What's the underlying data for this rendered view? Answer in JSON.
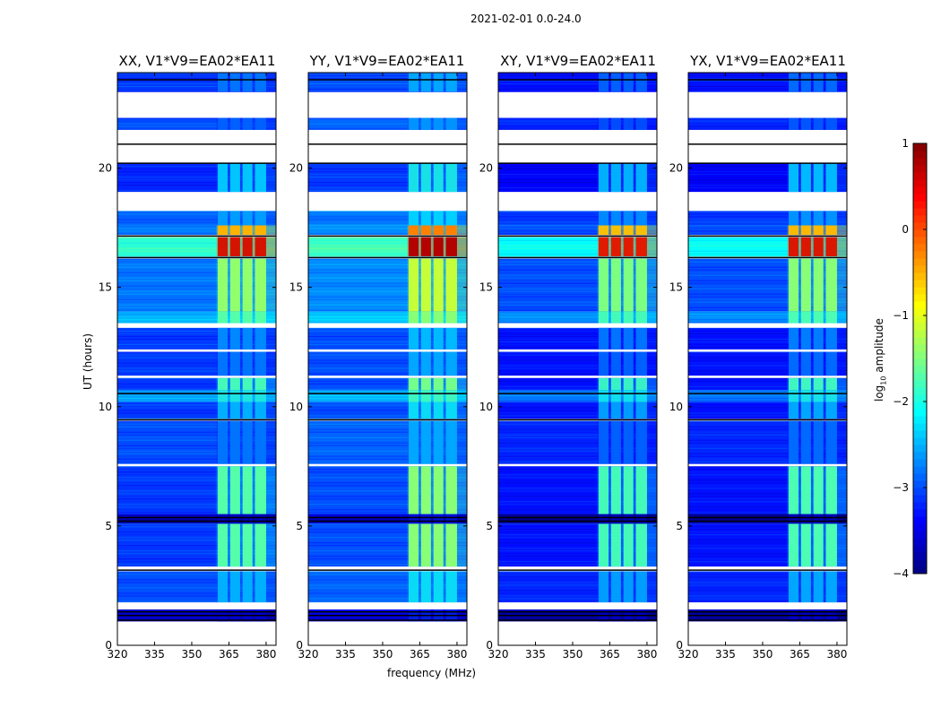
{
  "chart_data": {
    "type": "heatmap",
    "title": "2021-02-01 0.0-24.0",
    "xlabel": "frequency (MHz)",
    "ylabel": "UT (hours)",
    "xlim": [
      320,
      384
    ],
    "ylim": [
      0,
      24
    ],
    "xticks": [
      320,
      335,
      350,
      365,
      380
    ],
    "yticks": [
      0,
      5,
      10,
      15,
      20
    ],
    "colorbar": {
      "label_main": "log",
      "label_sub": "10",
      "label_tail": " amplitude",
      "range": [
        -4,
        1
      ],
      "ticks": [
        1,
        0,
        -1,
        -2,
        -3,
        -4
      ],
      "colormap": "jet"
    },
    "rfi_channels_mhz": [
      [
        360.5,
        364.5
      ],
      [
        365.5,
        369.5
      ],
      [
        370.5,
        374.5
      ],
      [
        375.5,
        380
      ]
    ],
    "panels": [
      {
        "title": "XX, V1*V9=EA02*EA11",
        "rfi_offset": 0,
        "base_offset": 0
      },
      {
        "title": "YY, V1*V9=EA02*EA11",
        "rfi_offset": 0.25,
        "base_offset": 0.1
      },
      {
        "title": "XY, V1*V9=EA02*EA11",
        "rfi_offset": -0.1,
        "base_offset": -0.2
      },
      {
        "title": "YX, V1*V9=EA02*EA11",
        "rfi_offset": -0.05,
        "base_offset": -0.2
      }
    ],
    "time_bands_hours": [
      {
        "t": [
          1.0,
          1.5
        ],
        "base": -3.6,
        "rfi": -3.4
      },
      {
        "t": [
          1.8,
          3.1
        ],
        "base": -3.0,
        "rfi": -2.3
      },
      {
        "t": [
          3.3,
          5.1
        ],
        "base": -3.1,
        "rfi": -1.5
      },
      {
        "t": [
          5.1,
          5.5
        ],
        "base": -3.7,
        "rfi": -3.5
      },
      {
        "t": [
          5.5,
          7.5
        ],
        "base": -3.1,
        "rfi": -1.5
      },
      {
        "t": [
          7.6,
          9.4
        ],
        "base": -3.0,
        "rfi": -2.6
      },
      {
        "t": [
          9.5,
          10.2
        ],
        "base": -3.1,
        "rfi": -2.3
      },
      {
        "t": [
          10.2,
          10.7
        ],
        "base": -2.6,
        "rfi": -1.9
      },
      {
        "t": [
          10.7,
          11.2
        ],
        "base": -3.1,
        "rfi": -1.6
      },
      {
        "t": [
          11.3,
          12.3
        ],
        "base": -3.1,
        "rfi": -2.6
      },
      {
        "t": [
          12.4,
          13.3
        ],
        "base": -3.1,
        "rfi": -2.5
      },
      {
        "t": [
          13.5,
          14.0
        ],
        "base": -2.5,
        "rfi": -1.5
      },
      {
        "t": [
          14.0,
          16.2
        ],
        "base": -2.8,
        "rfi": -1.2
      },
      {
        "t": [
          16.3,
          17.1
        ],
        "base": -1.9,
        "rfi": 0.7
      },
      {
        "t": [
          17.2,
          17.6
        ],
        "base": -2.8,
        "rfi": -0.3
      },
      {
        "t": [
          17.6,
          18.2
        ],
        "base": -2.9,
        "rfi": -2.4
      },
      {
        "t": [
          19.0,
          20.2
        ],
        "base": -3.2,
        "rfi": -2.2
      },
      {
        "t": [
          21.6,
          22.1
        ],
        "base": -3.0,
        "rfi": -2.7
      },
      {
        "t": [
          23.2,
          24.0
        ],
        "base": -3.1,
        "rfi": -2.6
      }
    ],
    "black_lines_hours": [
      1.05,
      1.25,
      1.4,
      3.15,
      5.2,
      5.35,
      9.45,
      10.55,
      16.25,
      17.15,
      20.2,
      21.0,
      23.7
    ]
  }
}
